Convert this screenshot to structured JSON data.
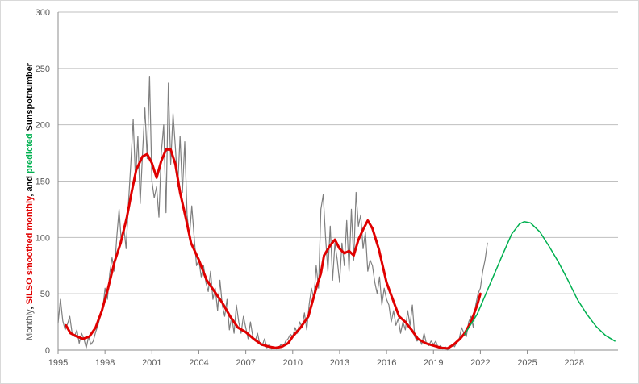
{
  "chart_data": {
    "type": "line",
    "title": "",
    "xlabel": "",
    "ylabel_parts": [
      {
        "text": "Monthly",
        "color": "#595959",
        "bold": false
      },
      {
        "text": ", ",
        "color": "#000000",
        "bold": true
      },
      {
        "text": "SILSO smoothed monthly",
        "color": "#e00000",
        "bold": true
      },
      {
        "text": ", and ",
        "color": "#000000",
        "bold": true
      },
      {
        "text": "predicted",
        "color": "#00b050",
        "bold": true
      },
      {
        "text": " Sunspotnumber",
        "color": "#000000",
        "bold": true
      }
    ],
    "xlim": [
      1995,
      2030.8
    ],
    "ylim": [
      0,
      300
    ],
    "x_ticks": [
      1995,
      1998,
      2001,
      2004,
      2007,
      2010,
      2013,
      2016,
      2019,
      2022,
      2025,
      2028
    ],
    "y_ticks": [
      0,
      50,
      100,
      150,
      200,
      250,
      300
    ],
    "grid": "horizontal",
    "legend": "none",
    "series": [
      {
        "key": "monthly",
        "color": "#7f7f7f",
        "width": 1.2,
        "points": [
          [
            1995.0,
            24
          ],
          [
            1995.15,
            45
          ],
          [
            1995.3,
            26
          ],
          [
            1995.45,
            18
          ],
          [
            1995.6,
            23
          ],
          [
            1995.75,
            30
          ],
          [
            1995.9,
            15
          ],
          [
            1996.05,
            12
          ],
          [
            1996.2,
            18
          ],
          [
            1996.35,
            6
          ],
          [
            1996.5,
            15
          ],
          [
            1996.65,
            10
          ],
          [
            1996.8,
            2
          ],
          [
            1996.95,
            12
          ],
          [
            1997.1,
            5
          ],
          [
            1997.25,
            8
          ],
          [
            1997.4,
            16
          ],
          [
            1997.55,
            22
          ],
          [
            1997.7,
            30
          ],
          [
            1997.85,
            35
          ],
          [
            1998.0,
            55
          ],
          [
            1998.15,
            45
          ],
          [
            1998.3,
            68
          ],
          [
            1998.45,
            82
          ],
          [
            1998.6,
            70
          ],
          [
            1998.75,
            100
          ],
          [
            1998.9,
            125
          ],
          [
            1999.05,
            95
          ],
          [
            1999.2,
            110
          ],
          [
            1999.35,
            90
          ],
          [
            1999.5,
            130
          ],
          [
            1999.65,
            165
          ],
          [
            1999.8,
            205
          ],
          [
            1999.95,
            150
          ],
          [
            2000.1,
            190
          ],
          [
            2000.25,
            130
          ],
          [
            2000.4,
            175
          ],
          [
            2000.55,
            215
          ],
          [
            2000.7,
            170
          ],
          [
            2000.85,
            243
          ],
          [
            2001.0,
            150
          ],
          [
            2001.15,
            135
          ],
          [
            2001.3,
            145
          ],
          [
            2001.45,
            118
          ],
          [
            2001.6,
            175
          ],
          [
            2001.75,
            200
          ],
          [
            2001.9,
            122
          ],
          [
            2002.05,
            237
          ],
          [
            2002.2,
            165
          ],
          [
            2002.35,
            210
          ],
          [
            2002.5,
            180
          ],
          [
            2002.65,
            145
          ],
          [
            2002.8,
            190
          ],
          [
            2002.95,
            140
          ],
          [
            2003.1,
            185
          ],
          [
            2003.25,
            120
          ],
          [
            2003.4,
            100
          ],
          [
            2003.55,
            128
          ],
          [
            2003.7,
            100
          ],
          [
            2003.85,
            75
          ],
          [
            2004.0,
            80
          ],
          [
            2004.15,
            65
          ],
          [
            2004.3,
            75
          ],
          [
            2004.45,
            60
          ],
          [
            2004.6,
            52
          ],
          [
            2004.75,
            70
          ],
          [
            2004.9,
            45
          ],
          [
            2005.05,
            55
          ],
          [
            2005.2,
            35
          ],
          [
            2005.35,
            62
          ],
          [
            2005.5,
            40
          ],
          [
            2005.65,
            30
          ],
          [
            2005.8,
            45
          ],
          [
            2005.95,
            18
          ],
          [
            2006.1,
            30
          ],
          [
            2006.25,
            15
          ],
          [
            2006.4,
            40
          ],
          [
            2006.55,
            25
          ],
          [
            2006.7,
            15
          ],
          [
            2006.85,
            30
          ],
          [
            2007.0,
            20
          ],
          [
            2007.15,
            10
          ],
          [
            2007.3,
            25
          ],
          [
            2007.45,
            12
          ],
          [
            2007.6,
            8
          ],
          [
            2007.75,
            15
          ],
          [
            2007.9,
            5
          ],
          [
            2008.05,
            4
          ],
          [
            2008.2,
            10
          ],
          [
            2008.35,
            2
          ],
          [
            2008.5,
            5
          ],
          [
            2008.65,
            1
          ],
          [
            2008.8,
            3
          ],
          [
            2008.95,
            1
          ],
          [
            2009.1,
            2
          ],
          [
            2009.25,
            5
          ],
          [
            2009.4,
            3
          ],
          [
            2009.55,
            8
          ],
          [
            2009.7,
            10
          ],
          [
            2009.85,
            14
          ],
          [
            2010.0,
            12
          ],
          [
            2010.15,
            20
          ],
          [
            2010.3,
            15
          ],
          [
            2010.45,
            25
          ],
          [
            2010.6,
            20
          ],
          [
            2010.75,
            33
          ],
          [
            2010.9,
            18
          ],
          [
            2011.05,
            40
          ],
          [
            2011.2,
            55
          ],
          [
            2011.35,
            45
          ],
          [
            2011.5,
            75
          ],
          [
            2011.65,
            55
          ],
          [
            2011.8,
            125
          ],
          [
            2011.95,
            138
          ],
          [
            2012.1,
            100
          ],
          [
            2012.25,
            70
          ],
          [
            2012.4,
            110
          ],
          [
            2012.55,
            62
          ],
          [
            2012.7,
            95
          ],
          [
            2012.85,
            80
          ],
          [
            2013.0,
            60
          ],
          [
            2013.15,
            95
          ],
          [
            2013.3,
            75
          ],
          [
            2013.45,
            115
          ],
          [
            2013.6,
            70
          ],
          [
            2013.75,
            125
          ],
          [
            2013.9,
            80
          ],
          [
            2014.05,
            140
          ],
          [
            2014.2,
            110
          ],
          [
            2014.35,
            120
          ],
          [
            2014.5,
            90
          ],
          [
            2014.65,
            105
          ],
          [
            2014.8,
            70
          ],
          [
            2014.95,
            80
          ],
          [
            2015.1,
            75
          ],
          [
            2015.25,
            60
          ],
          [
            2015.4,
            50
          ],
          [
            2015.55,
            65
          ],
          [
            2015.7,
            40
          ],
          [
            2015.85,
            55
          ],
          [
            2016.0,
            45
          ],
          [
            2016.15,
            40
          ],
          [
            2016.3,
            25
          ],
          [
            2016.45,
            35
          ],
          [
            2016.6,
            22
          ],
          [
            2016.75,
            28
          ],
          [
            2016.9,
            15
          ],
          [
            2017.05,
            25
          ],
          [
            2017.2,
            18
          ],
          [
            2017.35,
            35
          ],
          [
            2017.5,
            22
          ],
          [
            2017.65,
            40
          ],
          [
            2017.8,
            12
          ],
          [
            2017.95,
            8
          ],
          [
            2018.1,
            10
          ],
          [
            2018.25,
            5
          ],
          [
            2018.4,
            15
          ],
          [
            2018.55,
            6
          ],
          [
            2018.7,
            4
          ],
          [
            2018.85,
            8
          ],
          [
            2019.0,
            5
          ],
          [
            2019.15,
            8
          ],
          [
            2019.3,
            2
          ],
          [
            2019.45,
            4
          ],
          [
            2019.6,
            1
          ],
          [
            2019.75,
            3
          ],
          [
            2019.9,
            0
          ],
          [
            2020.05,
            2
          ],
          [
            2020.2,
            5
          ],
          [
            2020.35,
            3
          ],
          [
            2020.5,
            7
          ],
          [
            2020.65,
            10
          ],
          [
            2020.8,
            20
          ],
          [
            2020.95,
            15
          ],
          [
            2021.1,
            12
          ],
          [
            2021.25,
            25
          ],
          [
            2021.4,
            30
          ],
          [
            2021.55,
            20
          ],
          [
            2021.7,
            40
          ],
          [
            2021.85,
            50
          ],
          [
            2022.0,
            55
          ],
          [
            2022.15,
            70
          ],
          [
            2022.3,
            80
          ],
          [
            2022.45,
            95
          ]
        ]
      },
      {
        "key": "smoothed",
        "color": "#e00000",
        "width": 3,
        "points": [
          [
            1995.5,
            22
          ],
          [
            1995.8,
            15
          ],
          [
            1996.2,
            12
          ],
          [
            1996.6,
            10
          ],
          [
            1997.0,
            12
          ],
          [
            1997.4,
            20
          ],
          [
            1997.8,
            35
          ],
          [
            1998.2,
            55
          ],
          [
            1998.6,
            78
          ],
          [
            1999.0,
            95
          ],
          [
            1999.4,
            118
          ],
          [
            1999.7,
            140
          ],
          [
            2000.0,
            160
          ],
          [
            2000.4,
            172
          ],
          [
            2000.7,
            174
          ],
          [
            2001.0,
            166
          ],
          [
            2001.3,
            153
          ],
          [
            2001.6,
            168
          ],
          [
            2001.9,
            178
          ],
          [
            2002.2,
            178
          ],
          [
            2002.5,
            165
          ],
          [
            2002.8,
            140
          ],
          [
            2003.2,
            115
          ],
          [
            2003.5,
            95
          ],
          [
            2004.0,
            80
          ],
          [
            2004.5,
            62
          ],
          [
            2005.0,
            52
          ],
          [
            2005.5,
            42
          ],
          [
            2006.0,
            30
          ],
          [
            2006.5,
            20
          ],
          [
            2007.0,
            16
          ],
          [
            2007.5,
            10
          ],
          [
            2008.0,
            5
          ],
          [
            2008.5,
            3
          ],
          [
            2008.9,
            2
          ],
          [
            2009.3,
            3
          ],
          [
            2009.7,
            6
          ],
          [
            2010.0,
            12
          ],
          [
            2010.5,
            20
          ],
          [
            2011.0,
            30
          ],
          [
            2011.5,
            55
          ],
          [
            2011.8,
            68
          ],
          [
            2012.0,
            84
          ],
          [
            2012.4,
            93
          ],
          [
            2012.7,
            98
          ],
          [
            2013.0,
            90
          ],
          [
            2013.3,
            86
          ],
          [
            2013.6,
            88
          ],
          [
            2013.9,
            84
          ],
          [
            2014.2,
            98
          ],
          [
            2014.5,
            107
          ],
          [
            2014.8,
            115
          ],
          [
            2015.1,
            108
          ],
          [
            2015.5,
            90
          ],
          [
            2016.0,
            60
          ],
          [
            2016.4,
            45
          ],
          [
            2016.8,
            30
          ],
          [
            2017.2,
            25
          ],
          [
            2017.6,
            18
          ],
          [
            2018.0,
            10
          ],
          [
            2018.5,
            6
          ],
          [
            2019.0,
            4
          ],
          [
            2019.5,
            2
          ],
          [
            2019.9,
            1.5
          ],
          [
            2020.3,
            5
          ],
          [
            2020.7,
            10
          ],
          [
            2021.0,
            15
          ],
          [
            2021.4,
            25
          ],
          [
            2021.8,
            40
          ],
          [
            2022.0,
            50
          ]
        ]
      },
      {
        "key": "predicted",
        "color": "#00b050",
        "width": 1.5,
        "points": [
          [
            2021.0,
            14
          ],
          [
            2021.8,
            32
          ],
          [
            2022.6,
            58
          ],
          [
            2023.4,
            84
          ],
          [
            2024.0,
            103
          ],
          [
            2024.5,
            112
          ],
          [
            2024.8,
            114
          ],
          [
            2025.2,
            113
          ],
          [
            2025.8,
            105
          ],
          [
            2026.4,
            92
          ],
          [
            2027.0,
            78
          ],
          [
            2027.6,
            62
          ],
          [
            2028.2,
            45
          ],
          [
            2028.8,
            32
          ],
          [
            2029.4,
            21
          ],
          [
            2030.0,
            13
          ],
          [
            2030.6,
            8
          ]
        ]
      }
    ]
  }
}
